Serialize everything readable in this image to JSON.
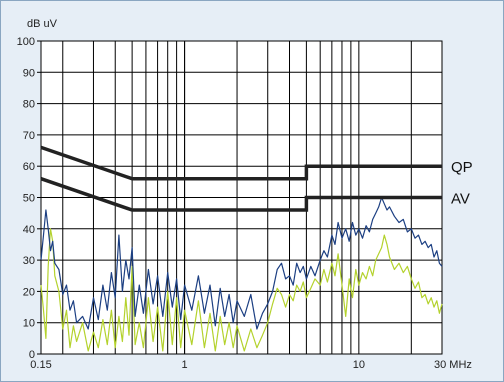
{
  "chart_data": {
    "type": "line",
    "title": "",
    "ylabel": "dB uV",
    "xlabel": "",
    "x_scale": "log",
    "xlim": [
      0.15,
      30
    ],
    "ylim": [
      0,
      100
    ],
    "grid": true,
    "y_ticks": [
      0,
      10,
      20,
      30,
      40,
      50,
      60,
      70,
      80,
      90,
      100
    ],
    "x_tick_labels": [
      {
        "value": 0.15,
        "label": "0.15"
      },
      {
        "value": 1,
        "label": "1"
      },
      {
        "value": 10,
        "label": "10"
      },
      {
        "value": 30,
        "label": "30 MHz"
      }
    ],
    "colors": {
      "frame_background": "#e6eef6",
      "plot_background": "#ffffff",
      "grid": "#000000",
      "limit": "#222222",
      "qp_trace": "#1c3f82",
      "av_trace": "#b4d22d"
    },
    "limit_lines": [
      {
        "name": "QP",
        "label": "QP",
        "points": [
          [
            0.15,
            66
          ],
          [
            0.5,
            56
          ],
          [
            5,
            56
          ],
          [
            5,
            60
          ],
          [
            30,
            60
          ]
        ]
      },
      {
        "name": "AV",
        "label": "AV",
        "points": [
          [
            0.15,
            56
          ],
          [
            0.5,
            46
          ],
          [
            5,
            46
          ],
          [
            5,
            50
          ],
          [
            30,
            50
          ]
        ]
      }
    ],
    "series": [
      {
        "color": "#1c3f82",
        "points": [
          [
            0.15,
            30
          ],
          [
            0.155,
            38
          ],
          [
            0.16,
            46
          ],
          [
            0.165,
            40
          ],
          [
            0.17,
            33
          ],
          [
            0.175,
            36
          ],
          [
            0.18,
            29
          ],
          [
            0.19,
            27
          ],
          [
            0.2,
            19
          ],
          [
            0.21,
            22
          ],
          [
            0.22,
            14
          ],
          [
            0.23,
            17
          ],
          [
            0.24,
            10
          ],
          [
            0.26,
            12
          ],
          [
            0.28,
            8
          ],
          [
            0.3,
            18
          ],
          [
            0.32,
            11
          ],
          [
            0.34,
            22
          ],
          [
            0.36,
            14
          ],
          [
            0.38,
            26
          ],
          [
            0.4,
            18
          ],
          [
            0.42,
            38
          ],
          [
            0.44,
            20
          ],
          [
            0.46,
            30
          ],
          [
            0.48,
            24
          ],
          [
            0.5,
            34
          ],
          [
            0.52,
            12
          ],
          [
            0.55,
            22
          ],
          [
            0.58,
            13
          ],
          [
            0.62,
            27
          ],
          [
            0.66,
            16
          ],
          [
            0.7,
            25
          ],
          [
            0.75,
            12
          ],
          [
            0.8,
            26
          ],
          [
            0.85,
            15
          ],
          [
            0.9,
            24
          ],
          [
            0.95,
            11
          ],
          [
            1.0,
            22
          ],
          [
            1.1,
            14
          ],
          [
            1.2,
            25
          ],
          [
            1.3,
            13
          ],
          [
            1.4,
            22
          ],
          [
            1.5,
            9
          ],
          [
            1.6,
            21
          ],
          [
            1.7,
            12
          ],
          [
            1.8,
            19
          ],
          [
            1.9,
            10
          ],
          [
            2.0,
            17
          ],
          [
            2.2,
            12
          ],
          [
            2.4,
            19
          ],
          [
            2.6,
            8
          ],
          [
            2.8,
            13
          ],
          [
            3.0,
            16
          ],
          [
            3.2,
            20
          ],
          [
            3.4,
            27
          ],
          [
            3.6,
            29
          ],
          [
            3.8,
            24
          ],
          [
            4.0,
            25
          ],
          [
            4.2,
            22
          ],
          [
            4.4,
            29
          ],
          [
            4.6,
            26
          ],
          [
            4.8,
            28
          ],
          [
            5.0,
            24
          ],
          [
            5.3,
            28
          ],
          [
            5.6,
            25
          ],
          [
            6.0,
            30
          ],
          [
            6.3,
            33
          ],
          [
            6.6,
            31
          ],
          [
            7.0,
            38
          ],
          [
            7.3,
            35
          ],
          [
            7.6,
            42
          ],
          [
            8.0,
            37
          ],
          [
            8.4,
            40
          ],
          [
            8.8,
            36
          ],
          [
            9.2,
            42
          ],
          [
            9.6,
            38
          ],
          [
            10,
            40
          ],
          [
            10.5,
            37
          ],
          [
            11,
            41
          ],
          [
            11.5,
            39
          ],
          [
            12,
            43
          ],
          [
            12.5,
            45
          ],
          [
            13,
            47
          ],
          [
            13.5,
            50
          ],
          [
            14,
            48
          ],
          [
            14.5,
            46
          ],
          [
            15,
            47
          ],
          [
            16,
            44
          ],
          [
            17,
            42
          ],
          [
            18,
            43
          ],
          [
            19,
            39
          ],
          [
            20,
            40
          ],
          [
            21,
            37
          ],
          [
            22,
            38
          ],
          [
            23,
            35
          ],
          [
            24,
            36
          ],
          [
            25,
            34
          ],
          [
            26,
            35
          ],
          [
            27,
            31
          ],
          [
            28,
            33
          ],
          [
            29,
            29
          ],
          [
            30,
            28
          ]
        ]
      },
      {
        "color": "#b4d22d",
        "points": [
          [
            0.15,
            22
          ],
          [
            0.155,
            14
          ],
          [
            0.16,
            5
          ],
          [
            0.165,
            28
          ],
          [
            0.17,
            40
          ],
          [
            0.175,
            36
          ],
          [
            0.18,
            25
          ],
          [
            0.19,
            20
          ],
          [
            0.2,
            8
          ],
          [
            0.21,
            14
          ],
          [
            0.22,
            2
          ],
          [
            0.23,
            9
          ],
          [
            0.24,
            4
          ],
          [
            0.26,
            10
          ],
          [
            0.28,
            1
          ],
          [
            0.3,
            7
          ],
          [
            0.32,
            2
          ],
          [
            0.34,
            11
          ],
          [
            0.36,
            3
          ],
          [
            0.38,
            14
          ],
          [
            0.4,
            2
          ],
          [
            0.42,
            12
          ],
          [
            0.44,
            4
          ],
          [
            0.46,
            18
          ],
          [
            0.48,
            6
          ],
          [
            0.5,
            28
          ],
          [
            0.52,
            3
          ],
          [
            0.55,
            10
          ],
          [
            0.58,
            2
          ],
          [
            0.62,
            18
          ],
          [
            0.66,
            4
          ],
          [
            0.7,
            15
          ],
          [
            0.75,
            1
          ],
          [
            0.8,
            20
          ],
          [
            0.85,
            3
          ],
          [
            0.9,
            18
          ],
          [
            0.95,
            2
          ],
          [
            1.0,
            14
          ],
          [
            1.1,
            3
          ],
          [
            1.2,
            17
          ],
          [
            1.3,
            2
          ],
          [
            1.4,
            13
          ],
          [
            1.5,
            1
          ],
          [
            1.6,
            12
          ],
          [
            1.7,
            3
          ],
          [
            1.8,
            10
          ],
          [
            1.9,
            2
          ],
          [
            2.0,
            9
          ],
          [
            2.2,
            1
          ],
          [
            2.4,
            8
          ],
          [
            2.6,
            2
          ],
          [
            2.8,
            6
          ],
          [
            3.0,
            10
          ],
          [
            3.2,
            16
          ],
          [
            3.4,
            21
          ],
          [
            3.6,
            19
          ],
          [
            3.8,
            15
          ],
          [
            4.0,
            19
          ],
          [
            4.2,
            17
          ],
          [
            4.4,
            22
          ],
          [
            4.6,
            20
          ],
          [
            4.8,
            23
          ],
          [
            5.0,
            18
          ],
          [
            5.3,
            21
          ],
          [
            5.6,
            24
          ],
          [
            6.0,
            22
          ],
          [
            6.3,
            27
          ],
          [
            6.6,
            23
          ],
          [
            7.0,
            29
          ],
          [
            7.3,
            25
          ],
          [
            7.6,
            32
          ],
          [
            8.0,
            22
          ],
          [
            8.4,
            12
          ],
          [
            8.8,
            24
          ],
          [
            9.2,
            18
          ],
          [
            9.6,
            27
          ],
          [
            10,
            22
          ],
          [
            10.5,
            26
          ],
          [
            11,
            24
          ],
          [
            11.5,
            28
          ],
          [
            12,
            25
          ],
          [
            12.5,
            30
          ],
          [
            13,
            32
          ],
          [
            13.5,
            34
          ],
          [
            14,
            38
          ],
          [
            14.5,
            35
          ],
          [
            15,
            31
          ],
          [
            16,
            27
          ],
          [
            17,
            29
          ],
          [
            18,
            26
          ],
          [
            19,
            28
          ],
          [
            20,
            24
          ],
          [
            21,
            21
          ],
          [
            22,
            23
          ],
          [
            23,
            18
          ],
          [
            24,
            19
          ],
          [
            25,
            16
          ],
          [
            26,
            18
          ],
          [
            27,
            15
          ],
          [
            28,
            17
          ],
          [
            29,
            13
          ],
          [
            30,
            16
          ]
        ]
      }
    ]
  }
}
